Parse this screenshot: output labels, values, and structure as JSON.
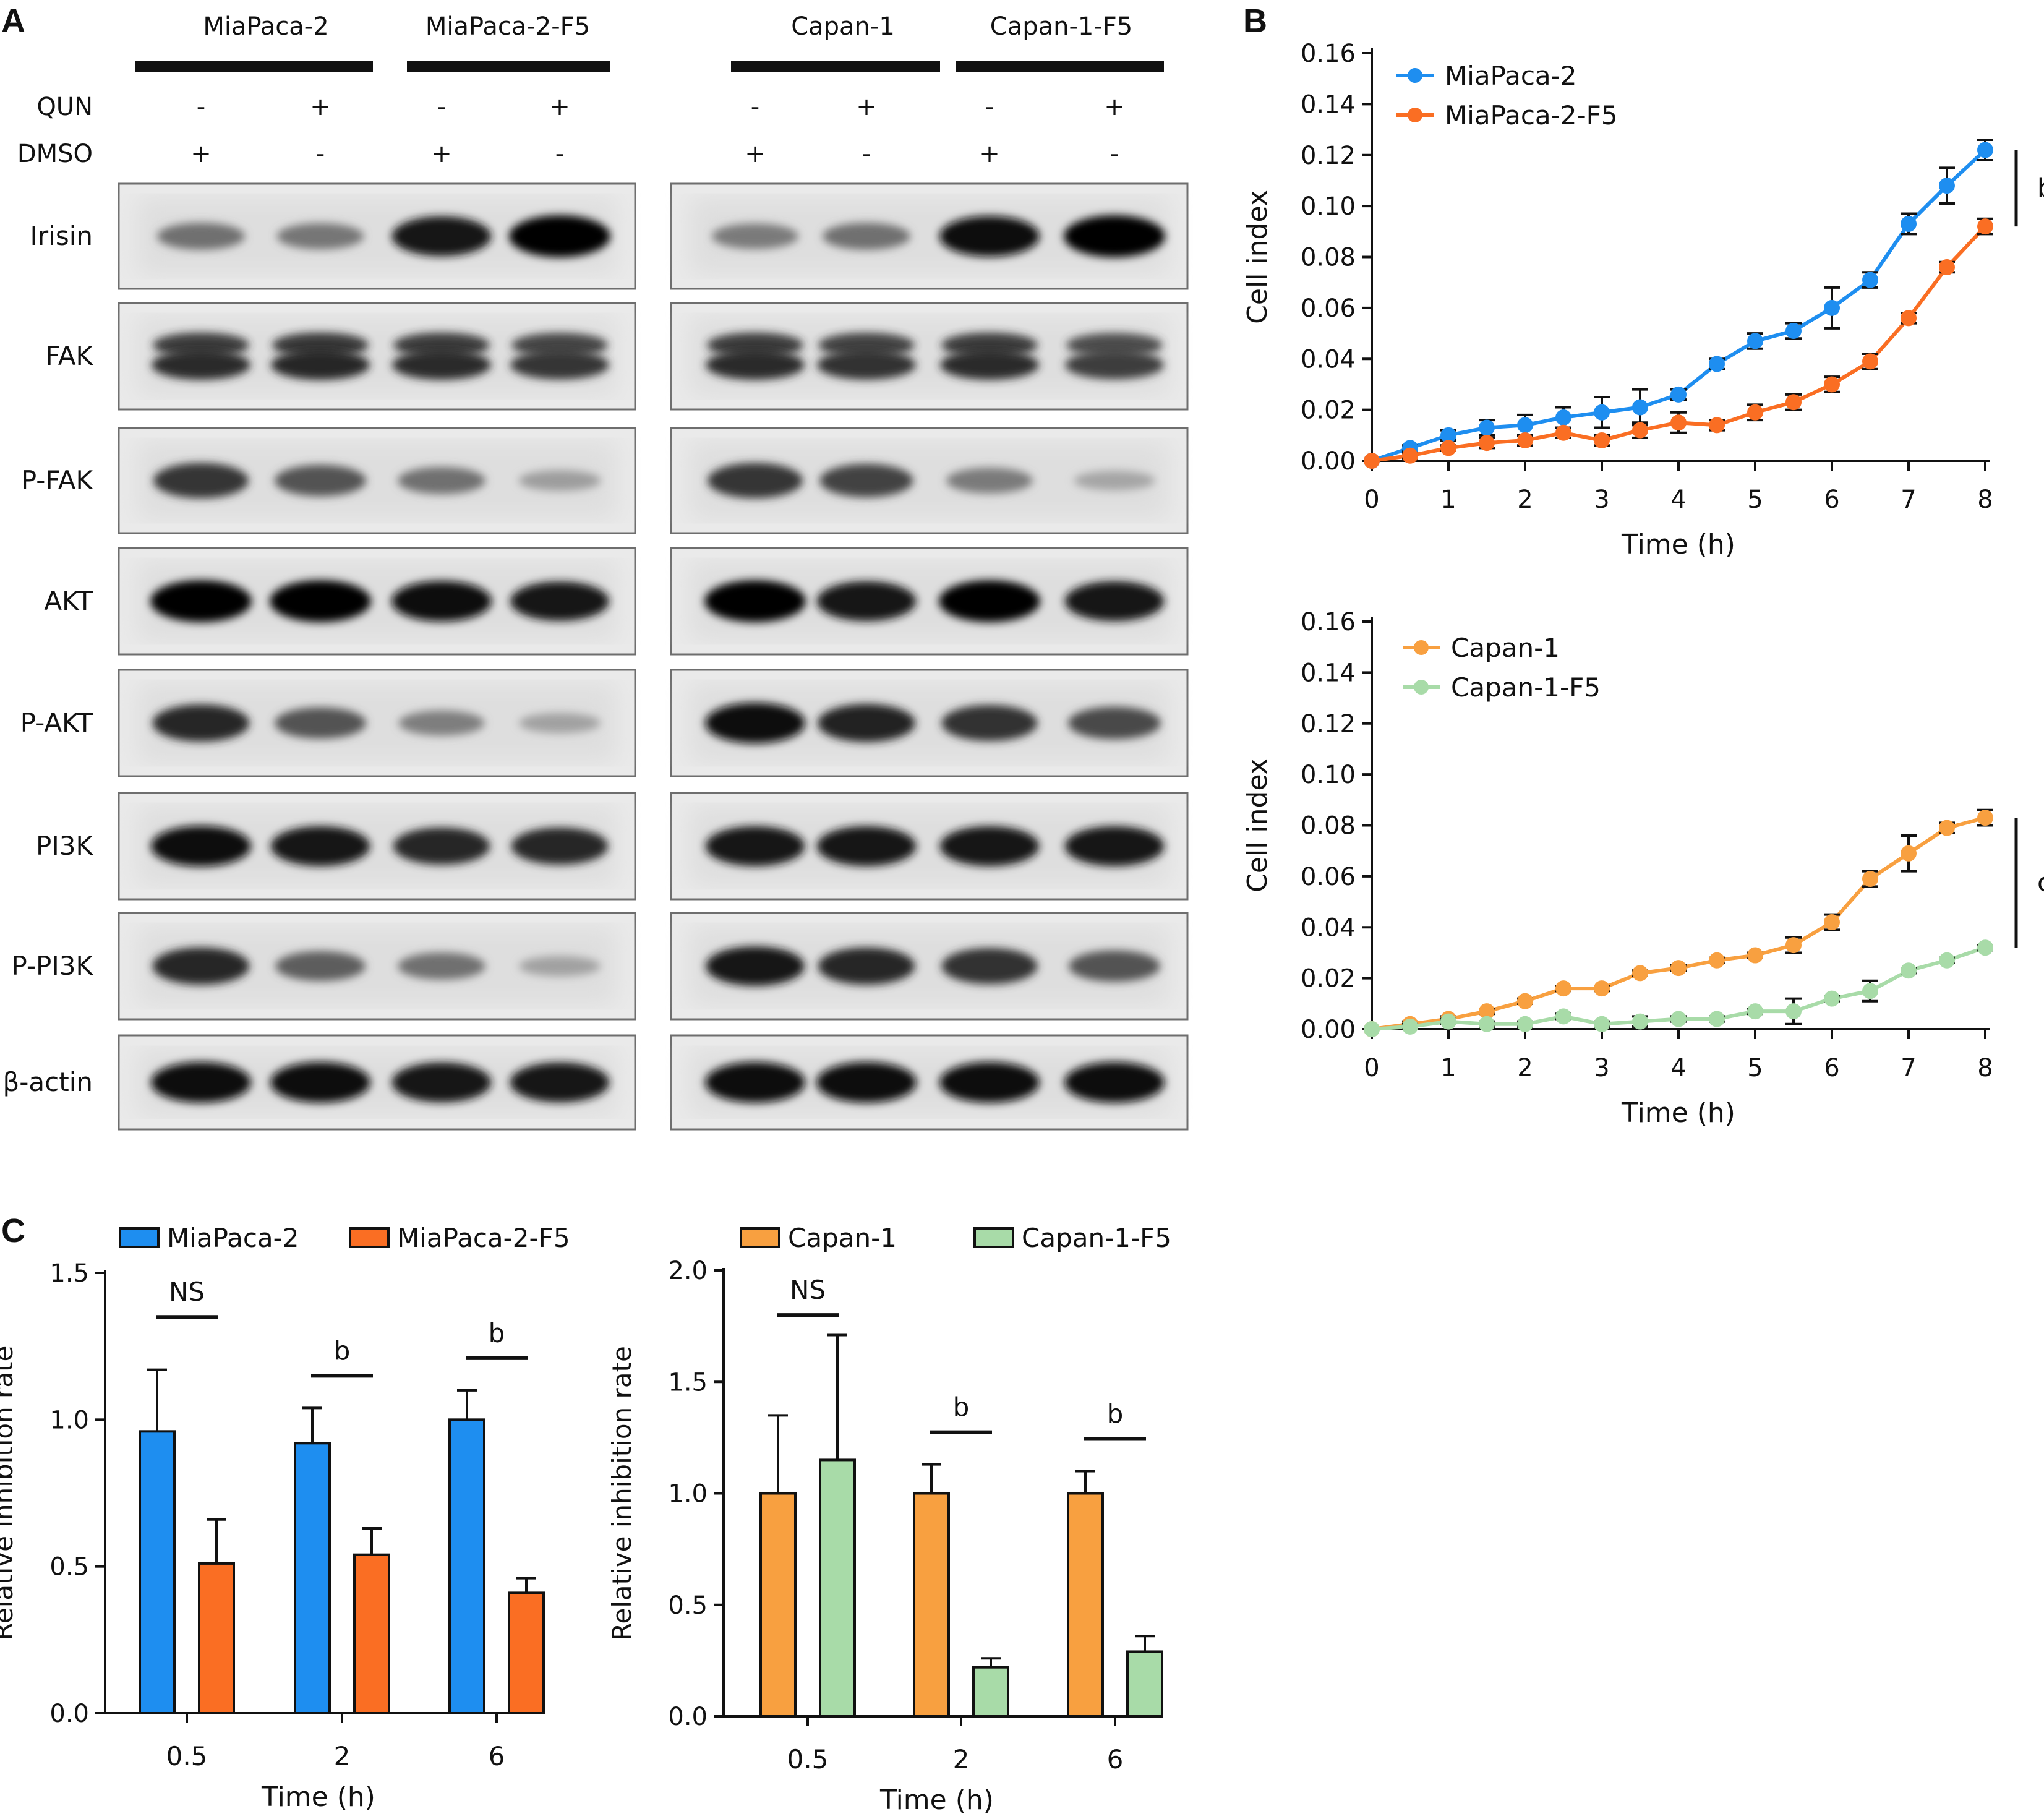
{
  "panel_labels": {
    "a": "A",
    "b": "B",
    "c": "C"
  },
  "western_blot": {
    "left": {
      "groups": [
        "MiaPaca-2",
        "MiaPaca-2-F5"
      ],
      "lanes": [
        {
          "qun": "-",
          "dmso": "+"
        },
        {
          "qun": "+",
          "dmso": "-"
        },
        {
          "qun": "-",
          "dmso": "+"
        },
        {
          "qun": "+",
          "dmso": "-"
        }
      ]
    },
    "right": {
      "groups": [
        "Capan-1",
        "Capan-1-F5"
      ],
      "lanes": [
        {
          "qun": "-",
          "dmso": "+"
        },
        {
          "qun": "+",
          "dmso": "-"
        },
        {
          "qun": "-",
          "dmso": "+"
        },
        {
          "qun": "+",
          "dmso": "-"
        }
      ]
    },
    "treatment_labels": {
      "qun": "QUN",
      "dmso": "DMSO"
    },
    "proteins": [
      "Irisin",
      "FAK",
      "P-FAK",
      "AKT",
      "P-AKT",
      "PI3K",
      "P-PI3K",
      "β-actin"
    ],
    "band_intensity": {
      "left": [
        [
          0.45,
          0.42,
          0.92,
          1.0
        ],
        [
          0.8,
          0.82,
          0.8,
          0.75
        ],
        [
          0.75,
          0.6,
          0.45,
          0.22
        ],
        [
          1.0,
          1.0,
          0.95,
          0.9
        ],
        [
          0.82,
          0.6,
          0.38,
          0.2
        ],
        [
          0.95,
          0.92,
          0.82,
          0.82
        ],
        [
          0.82,
          0.55,
          0.45,
          0.2
        ],
        [
          0.95,
          0.95,
          0.92,
          0.92
        ]
      ],
      "right": [
        [
          0.4,
          0.45,
          0.95,
          1.0
        ],
        [
          0.8,
          0.78,
          0.8,
          0.72
        ],
        [
          0.75,
          0.68,
          0.4,
          0.18
        ],
        [
          1.0,
          0.92,
          1.0,
          0.92
        ],
        [
          0.95,
          0.85,
          0.78,
          0.65
        ],
        [
          0.92,
          0.92,
          0.92,
          0.92
        ],
        [
          0.9,
          0.82,
          0.78,
          0.6
        ],
        [
          0.95,
          0.95,
          0.95,
          0.95
        ]
      ]
    }
  },
  "chart_data": [
    {
      "type": "line",
      "panel": "B-top",
      "xlabel": "Time (h)",
      "ylabel": "Cell index",
      "xlim": [
        0,
        8
      ],
      "ylim": [
        0,
        0.16
      ],
      "xticks": [
        0,
        1,
        2,
        3,
        4,
        5,
        6,
        7,
        8
      ],
      "yticks": [
        "0.00",
        "0.02",
        "0.04",
        "0.06",
        "0.08",
        "0.10",
        "0.12",
        "0.14",
        "0.16"
      ],
      "x": [
        0,
        0.5,
        1,
        1.5,
        2,
        2.5,
        3,
        3.5,
        4,
        4.5,
        5,
        5.5,
        6,
        6.5,
        7,
        7.5,
        8
      ],
      "series": [
        {
          "name": "MiaPaca-2",
          "color": "#1e8ef0",
          "values": [
            0.0,
            0.005,
            0.01,
            0.013,
            0.014,
            0.017,
            0.019,
            0.021,
            0.026,
            0.038,
            0.047,
            0.051,
            0.06,
            0.071,
            0.093,
            0.108,
            0.122
          ],
          "errors": [
            0.0,
            0.001,
            0.002,
            0.003,
            0.004,
            0.004,
            0.006,
            0.007,
            0.002,
            0.002,
            0.003,
            0.003,
            0.008,
            0.003,
            0.004,
            0.007,
            0.004
          ]
        },
        {
          "name": "MiaPaca-2-F5",
          "color": "#fa6e23",
          "values": [
            0.0,
            0.002,
            0.005,
            0.007,
            0.008,
            0.011,
            0.008,
            0.012,
            0.015,
            0.014,
            0.019,
            0.023,
            0.03,
            0.039,
            0.056,
            0.076,
            0.092
          ],
          "errors": [
            0.0,
            0.001,
            0.001,
            0.002,
            0.002,
            0.002,
            0.002,
            0.003,
            0.004,
            0.002,
            0.003,
            0.003,
            0.003,
            0.003,
            0.002,
            0.002,
            0.003
          ]
        }
      ],
      "annotation": "b"
    },
    {
      "type": "line",
      "panel": "B-bottom",
      "xlabel": "Time (h)",
      "ylabel": "Cell index",
      "xlim": [
        0,
        8
      ],
      "ylim": [
        0,
        0.16
      ],
      "xticks": [
        0,
        1,
        2,
        3,
        4,
        5,
        6,
        7,
        8
      ],
      "yticks": [
        "0.00",
        "0.02",
        "0.04",
        "0.06",
        "0.08",
        "0.10",
        "0.12",
        "0.14",
        "0.16"
      ],
      "x": [
        0,
        0.5,
        1,
        1.5,
        2,
        2.5,
        3,
        3.5,
        4,
        4.5,
        5,
        5.5,
        6,
        6.5,
        7,
        7.5,
        8
      ],
      "series": [
        {
          "name": "Capan-1",
          "color": "#f8a040",
          "values": [
            0.0,
            0.002,
            0.004,
            0.007,
            0.011,
            0.016,
            0.016,
            0.022,
            0.024,
            0.027,
            0.029,
            0.033,
            0.042,
            0.059,
            0.069,
            0.079,
            0.083
          ],
          "errors": [
            0.0,
            0.001,
            0.001,
            0.001,
            0.001,
            0.001,
            0.001,
            0.001,
            0.001,
            0.001,
            0.001,
            0.003,
            0.003,
            0.003,
            0.007,
            0.002,
            0.003
          ]
        },
        {
          "name": "Capan-1-F5",
          "color": "#a8dba8",
          "values": [
            0.0,
            0.001,
            0.003,
            0.002,
            0.002,
            0.005,
            0.002,
            0.003,
            0.004,
            0.004,
            0.007,
            0.007,
            0.012,
            0.015,
            0.023,
            0.027,
            0.032
          ],
          "errors": [
            0.0,
            0.001,
            0.001,
            0.001,
            0.001,
            0.001,
            0.001,
            0.002,
            0.001,
            0.001,
            0.001,
            0.005,
            0.001,
            0.004,
            0.001,
            0.001,
            0.001
          ]
        }
      ],
      "annotation": "c"
    },
    {
      "type": "bar",
      "panel": "C-left",
      "xlabel": "Time (h)",
      "ylabel": "Relative inhibition rate",
      "ylim": [
        0,
        1.5
      ],
      "yticks": [
        "0.0",
        "0.5",
        "1.0",
        "1.5"
      ],
      "categories": [
        "0.5",
        "2",
        "6"
      ],
      "series": [
        {
          "name": "MiaPaca-2",
          "color": "#1e8ef0",
          "values": [
            0.96,
            0.92,
            1.0
          ],
          "errors": [
            0.21,
            0.12,
            0.1
          ]
        },
        {
          "name": "MiaPaca-2-F5",
          "color": "#fa6e23",
          "values": [
            0.51,
            0.54,
            0.41
          ],
          "errors": [
            0.15,
            0.09,
            0.05
          ]
        }
      ],
      "significance": [
        "NS",
        "b",
        "b"
      ]
    },
    {
      "type": "bar",
      "panel": "C-right",
      "xlabel": "Time (h)",
      "ylabel": "Relative inhibition rate",
      "ylim": [
        0,
        2.0
      ],
      "yticks": [
        "0.0",
        "0.5",
        "1.0",
        "1.5",
        "2.0"
      ],
      "categories": [
        "0.5",
        "2",
        "6"
      ],
      "series": [
        {
          "name": "Capan-1",
          "color": "#f8a040",
          "values": [
            1.0,
            1.0,
            1.0
          ],
          "errors": [
            0.35,
            0.13,
            0.1
          ]
        },
        {
          "name": "Capan-1-F5",
          "color": "#a8dba8",
          "values": [
            1.15,
            0.22,
            0.29
          ],
          "errors": [
            0.56,
            0.04,
            0.07
          ]
        }
      ],
      "significance": [
        "NS",
        "b",
        "b"
      ]
    }
  ]
}
